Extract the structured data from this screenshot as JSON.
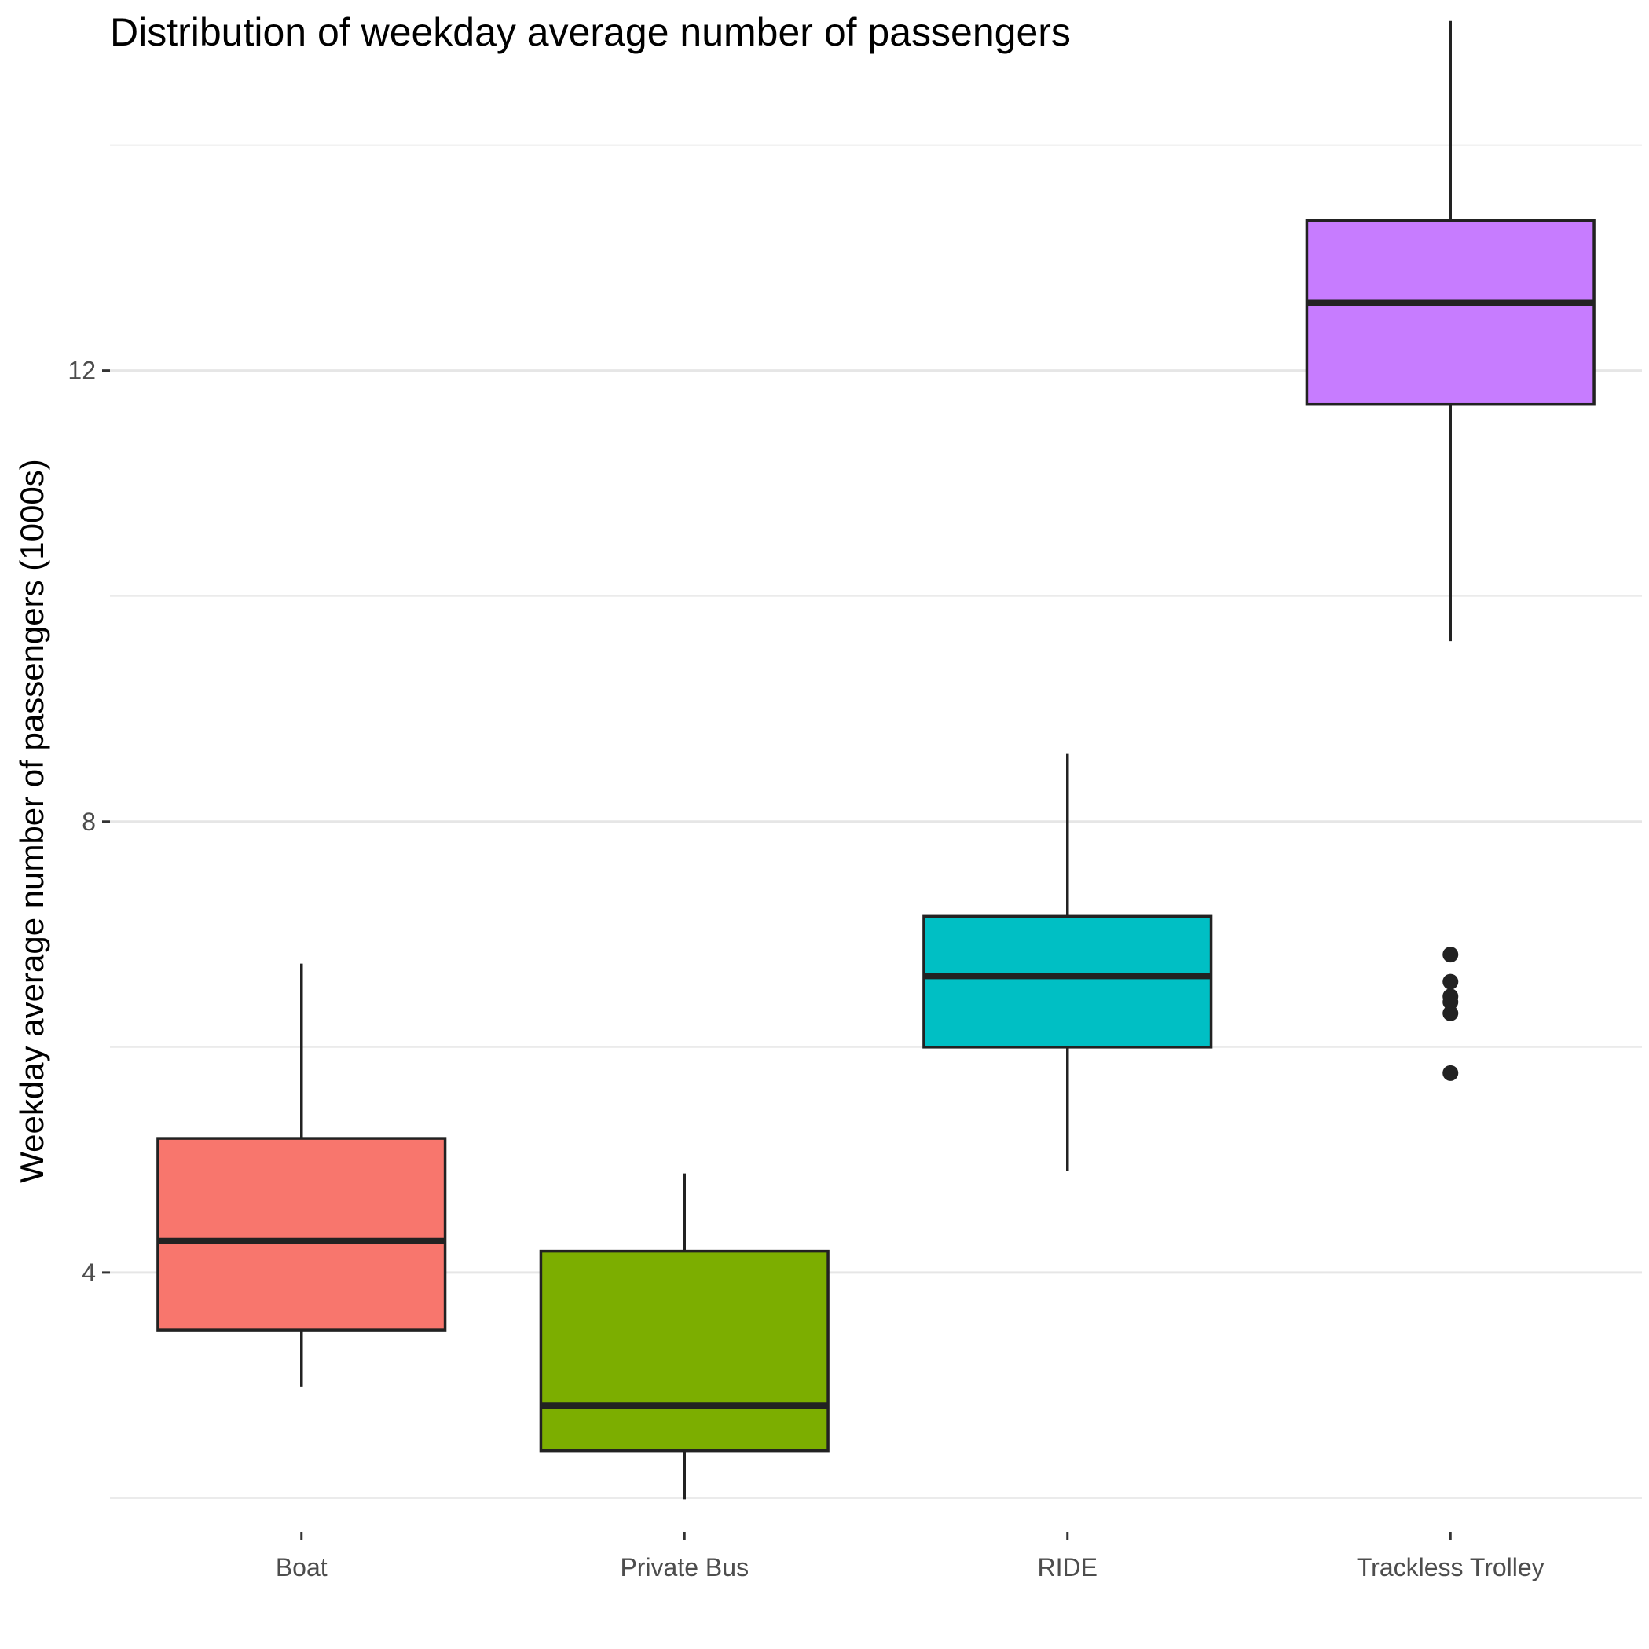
{
  "chart_data": {
    "type": "boxplot",
    "title": "Distribution of weekday average number of passengers",
    "xlabel": "",
    "ylabel": "Weekday average number of passengers (1000s)",
    "categories": [
      "Boat",
      "Private Bus",
      "RIDE",
      "Trackless Trolley"
    ],
    "ylim": [
      1.7,
      14.45
    ],
    "yticks": [
      4,
      8,
      12
    ],
    "minor_gridlines": [
      2,
      6,
      10,
      14
    ],
    "grid": true,
    "legend": "none",
    "boxes": [
      {
        "category": "Boat",
        "whisker_low": 2.99,
        "q1": 3.49,
        "median": 4.28,
        "q3": 5.19,
        "whisker_high": 6.74,
        "outliers": [],
        "color": "#F8766D"
      },
      {
        "category": "Private Bus",
        "whisker_low": 1.99,
        "q1": 2.42,
        "median": 2.82,
        "q3": 4.19,
        "whisker_high": 4.88,
        "outliers": [],
        "color": "#7CAE00"
      },
      {
        "category": "RIDE",
        "whisker_low": 4.9,
        "q1": 6.0,
        "median": 6.63,
        "q3": 7.16,
        "whisker_high": 8.6,
        "outliers": [],
        "color": "#00BFC4"
      },
      {
        "category": "Trackless Trolley",
        "whisker_low": 9.6,
        "q1": 11.7,
        "median": 12.6,
        "q3": 13.33,
        "whisker_high": 15.1,
        "outliers": [
          6.82,
          6.58,
          6.45,
          6.4,
          6.3,
          5.77
        ],
        "color": "#C77CFF"
      }
    ]
  }
}
